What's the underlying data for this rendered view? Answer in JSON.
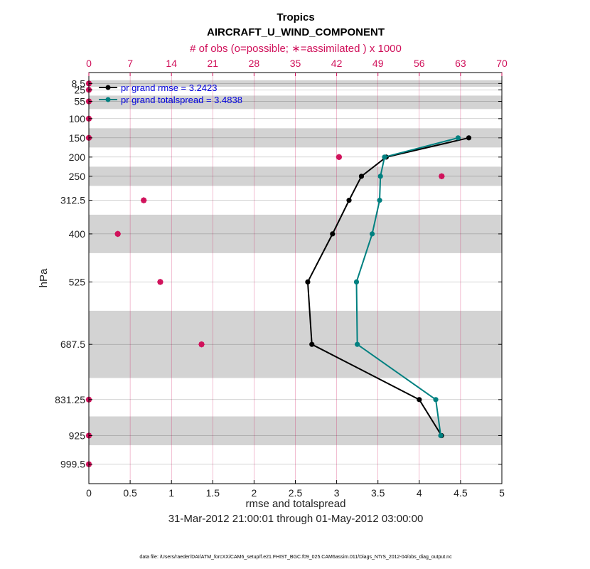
{
  "chart_data": {
    "type": "line",
    "title": "Tropics",
    "subtitle": "AIRCRAFT_U_WIND_COMPONENT",
    "xlabel": "rmse and totalspread",
    "ylabel": "hPa",
    "xlim": [
      0,
      5
    ],
    "xticks": [
      "0",
      "0.5",
      "1",
      "1.5",
      "2",
      "2.5",
      "3",
      "3.5",
      "4",
      "4.5",
      "5"
    ],
    "ylim": [
      1050,
      -20
    ],
    "yticks": [
      "8.5",
      "25",
      "55",
      "100",
      "150",
      "200",
      "250",
      "312.5",
      "400",
      "525",
      "687.5",
      "831.25",
      "925",
      "999.5"
    ],
    "ytick_values": [
      8.5,
      25,
      55,
      100,
      150,
      200,
      250,
      312.5,
      400,
      525,
      687.5,
      831.25,
      925,
      999.5
    ],
    "y_reversed": true,
    "bands": [
      [
        0,
        17
      ],
      [
        40,
        75
      ],
      [
        125,
        175
      ],
      [
        225,
        275
      ],
      [
        350,
        450
      ],
      [
        600,
        775
      ],
      [
        875,
        950
      ]
    ],
    "top_axis": {
      "label": "# of obs (o=possible; ∗=assimilated ) x 1000",
      "lim": [
        0,
        70
      ],
      "ticks": [
        "0",
        "7",
        "14",
        "21",
        "28",
        "35",
        "42",
        "49",
        "56",
        "63",
        "70"
      ],
      "color": "#d0105a"
    },
    "series": [
      {
        "name": "pr grand rmse = 3.2423",
        "color": "#000000",
        "points": [
          [
            4.6,
            150
          ],
          [
            3.6,
            200
          ],
          [
            3.3,
            250
          ],
          [
            3.15,
            312.5
          ],
          [
            2.95,
            400
          ],
          [
            2.65,
            525
          ],
          [
            2.7,
            687.5
          ],
          [
            4.0,
            831.25
          ],
          [
            4.27,
            925
          ]
        ]
      },
      {
        "name": "pr grand totalspread = 3.4838",
        "color": "#008080",
        "points": [
          [
            4.47,
            150
          ],
          [
            3.58,
            200
          ],
          [
            3.53,
            250
          ],
          [
            3.52,
            312.5
          ],
          [
            3.43,
            400
          ],
          [
            3.24,
            525
          ],
          [
            3.25,
            687.5
          ],
          [
            4.2,
            831.25
          ],
          [
            4.26,
            925
          ]
        ]
      }
    ],
    "obs_counts": {
      "levels": [
        8.5,
        25,
        55,
        100,
        150,
        200,
        250,
        312.5,
        400,
        525,
        687.5,
        831.25,
        925,
        999.5
      ],
      "possible": [
        0,
        0,
        0,
        0,
        0,
        42.4,
        59.8,
        9.3,
        4.9,
        12.1,
        19.1,
        0,
        0,
        0
      ],
      "assimilated": [
        0,
        0,
        0,
        0,
        0,
        42.4,
        59.8,
        9.3,
        4.9,
        12.1,
        19.1,
        0,
        0,
        0
      ]
    },
    "grid": true,
    "legend_position": "top-left",
    "date_range": "31-Mar-2012 21:00:01 through 01-May-2012 03:00:00",
    "footer": "data file: /Users/raeder/DAI/ATM_forcXX/CAM6_setup/f.e21.FHIST_BGC.f09_025.CAM6assim.011/Diags_NTrS_2012-04/obs_diag_output.nc"
  }
}
